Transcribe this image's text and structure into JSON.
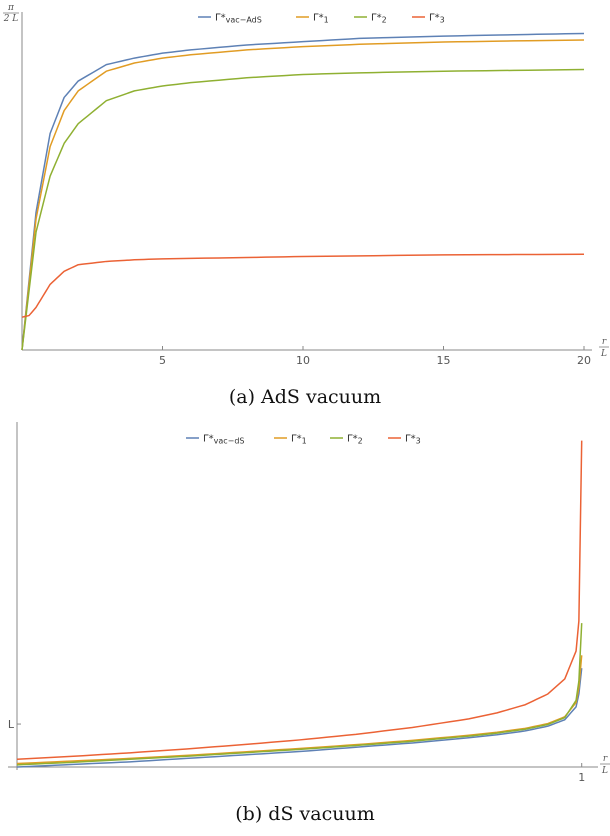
{
  "chart_data": [
    {
      "type": "line",
      "caption": "(a) AdS vacuum",
      "xlabel": {
        "num": "r",
        "den": "L"
      },
      "ylabel": {
        "num": "π",
        "den": "2 L"
      },
      "xticks": [
        "5",
        "10",
        "15",
        "20"
      ],
      "xtick_values": [
        5,
        10,
        15,
        20
      ],
      "xlim": [
        0,
        20
      ],
      "ylim": [
        0,
        1.0
      ],
      "legend": "top-center",
      "series": [
        {
          "name": "Γ*",
          "sub": "vac−AdS",
          "color": "#5E81B5",
          "x": [
            0,
            0.5,
            1,
            1.5,
            2,
            3,
            4,
            5,
            6,
            8,
            10,
            12,
            15,
            18,
            20
          ],
          "y": [
            0,
            0.42,
            0.66,
            0.77,
            0.82,
            0.87,
            0.89,
            0.905,
            0.915,
            0.93,
            0.94,
            0.95,
            0.957,
            0.962,
            0.965
          ]
        },
        {
          "name": "Γ*",
          "sub": "1",
          "color": "#E19C24",
          "x": [
            0,
            0.5,
            1,
            1.5,
            2,
            3,
            4,
            5,
            6,
            8,
            10,
            12,
            15,
            18,
            20
          ],
          "y": [
            0,
            0.4,
            0.62,
            0.73,
            0.79,
            0.85,
            0.875,
            0.89,
            0.9,
            0.915,
            0.925,
            0.932,
            0.939,
            0.943,
            0.945
          ]
        },
        {
          "name": "Γ*",
          "sub": "2",
          "color": "#8FB032",
          "x": [
            0,
            0.5,
            1,
            1.5,
            2,
            3,
            4,
            5,
            6,
            8,
            10,
            12,
            15,
            18,
            20
          ],
          "y": [
            0,
            0.36,
            0.53,
            0.63,
            0.69,
            0.76,
            0.79,
            0.805,
            0.815,
            0.83,
            0.84,
            0.845,
            0.85,
            0.853,
            0.855
          ]
        },
        {
          "name": "Γ*",
          "sub": "3",
          "color": "#EB6235",
          "x": [
            0,
            0.25,
            0.5,
            1,
            1.5,
            2,
            3,
            4,
            5,
            8,
            10,
            15,
            20
          ],
          "y": [
            0.1,
            0.105,
            0.13,
            0.2,
            0.24,
            0.26,
            0.27,
            0.275,
            0.278,
            0.282,
            0.285,
            0.29,
            0.292
          ]
        }
      ]
    },
    {
      "type": "line",
      "caption": "(b) dS vacuum",
      "xlabel": {
        "num": "r",
        "den": "L"
      },
      "yticks": [
        "L"
      ],
      "ytick_values": [
        1
      ],
      "xticks": [
        "1"
      ],
      "xtick_values": [
        1
      ],
      "xlim": [
        0,
        1.02
      ],
      "ylim": [
        0,
        7.8
      ],
      "legend": "top-center",
      "series": [
        {
          "name": "Γ*",
          "sub": "vac−dS",
          "color": "#5E81B5",
          "x": [
            0,
            0.1,
            0.2,
            0.3,
            0.4,
            0.5,
            0.6,
            0.7,
            0.8,
            0.85,
            0.9,
            0.94,
            0.97,
            0.99,
            0.995,
            1.0
          ],
          "y": [
            0,
            0.06,
            0.12,
            0.2,
            0.28,
            0.36,
            0.46,
            0.56,
            0.68,
            0.75,
            0.84,
            0.95,
            1.1,
            1.4,
            1.7,
            2.3
          ]
        },
        {
          "name": "Γ*",
          "sub": "1",
          "color": "#E19C24",
          "x": [
            0,
            0.1,
            0.2,
            0.3,
            0.4,
            0.5,
            0.6,
            0.7,
            0.8,
            0.85,
            0.9,
            0.94,
            0.97,
            0.99,
            0.995,
            1.0
          ],
          "y": [
            0.08,
            0.14,
            0.2,
            0.27,
            0.35,
            0.43,
            0.52,
            0.62,
            0.74,
            0.81,
            0.9,
            1.01,
            1.17,
            1.5,
            1.85,
            2.6
          ]
        },
        {
          "name": "Γ*",
          "sub": "2",
          "color": "#8FB032",
          "x": [
            0,
            0.1,
            0.2,
            0.3,
            0.4,
            0.5,
            0.6,
            0.7,
            0.8,
            0.85,
            0.9,
            0.94,
            0.97,
            0.99,
            0.995,
            1.0
          ],
          "y": [
            0.05,
            0.11,
            0.18,
            0.25,
            0.33,
            0.41,
            0.5,
            0.6,
            0.72,
            0.79,
            0.88,
            0.99,
            1.15,
            1.55,
            2.0,
            3.35
          ]
        },
        {
          "name": "Γ*",
          "sub": "3",
          "color": "#EB6235",
          "x": [
            0,
            0.1,
            0.2,
            0.3,
            0.4,
            0.5,
            0.6,
            0.7,
            0.8,
            0.85,
            0.9,
            0.94,
            0.97,
            0.99,
            0.995,
            1.0
          ],
          "y": [
            0.18,
            0.25,
            0.33,
            0.42,
            0.52,
            0.63,
            0.76,
            0.92,
            1.12,
            1.26,
            1.45,
            1.7,
            2.05,
            2.7,
            3.4,
            7.6
          ]
        }
      ]
    }
  ]
}
